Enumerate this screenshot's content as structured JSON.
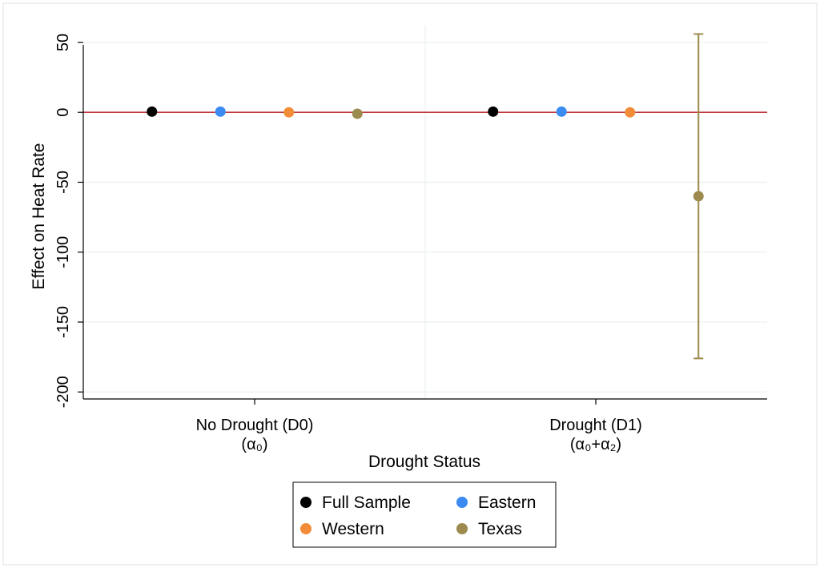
{
  "chart_data": {
    "type": "scatter",
    "title": "",
    "xlabel": "Drought Status",
    "ylabel": "Effect on Heat Rate",
    "ylim": [
      -205,
      62
    ],
    "yticks": [
      50,
      0,
      -50,
      -100,
      -150,
      -200
    ],
    "grid": true,
    "legend_position": "bottom",
    "categories": [
      {
        "line1": "No Drought (D0)",
        "line2": "(α₀)"
      },
      {
        "line1": "Drought (D1)",
        "line2": "(α₀+α₂)"
      }
    ],
    "reference_line": {
      "y": 0,
      "color": "#c1343d"
    },
    "series": [
      {
        "name": "Full Sample",
        "color": "#000000",
        "points": [
          {
            "category": 0,
            "offset": -1.5,
            "y": 0.5
          },
          {
            "category": 1,
            "offset": -1.5,
            "y": 0.5
          }
        ]
      },
      {
        "name": "Eastern",
        "color": "#3b8bf3",
        "points": [
          {
            "category": 0,
            "offset": -0.5,
            "y": 0.5
          },
          {
            "category": 1,
            "offset": -0.5,
            "y": 0.5
          }
        ]
      },
      {
        "name": "Western",
        "color": "#f28c38",
        "points": [
          {
            "category": 0,
            "offset": 0.5,
            "y": 0.0
          },
          {
            "category": 1,
            "offset": 0.5,
            "y": 0.0
          }
        ]
      },
      {
        "name": "Texas",
        "color": "#9c8a4f",
        "points": [
          {
            "category": 0,
            "offset": 1.5,
            "y": -1.0
          },
          {
            "category": 1,
            "offset": 1.5,
            "y": -60.0,
            "ci": [
              -176,
              56
            ]
          }
        ]
      }
    ]
  }
}
